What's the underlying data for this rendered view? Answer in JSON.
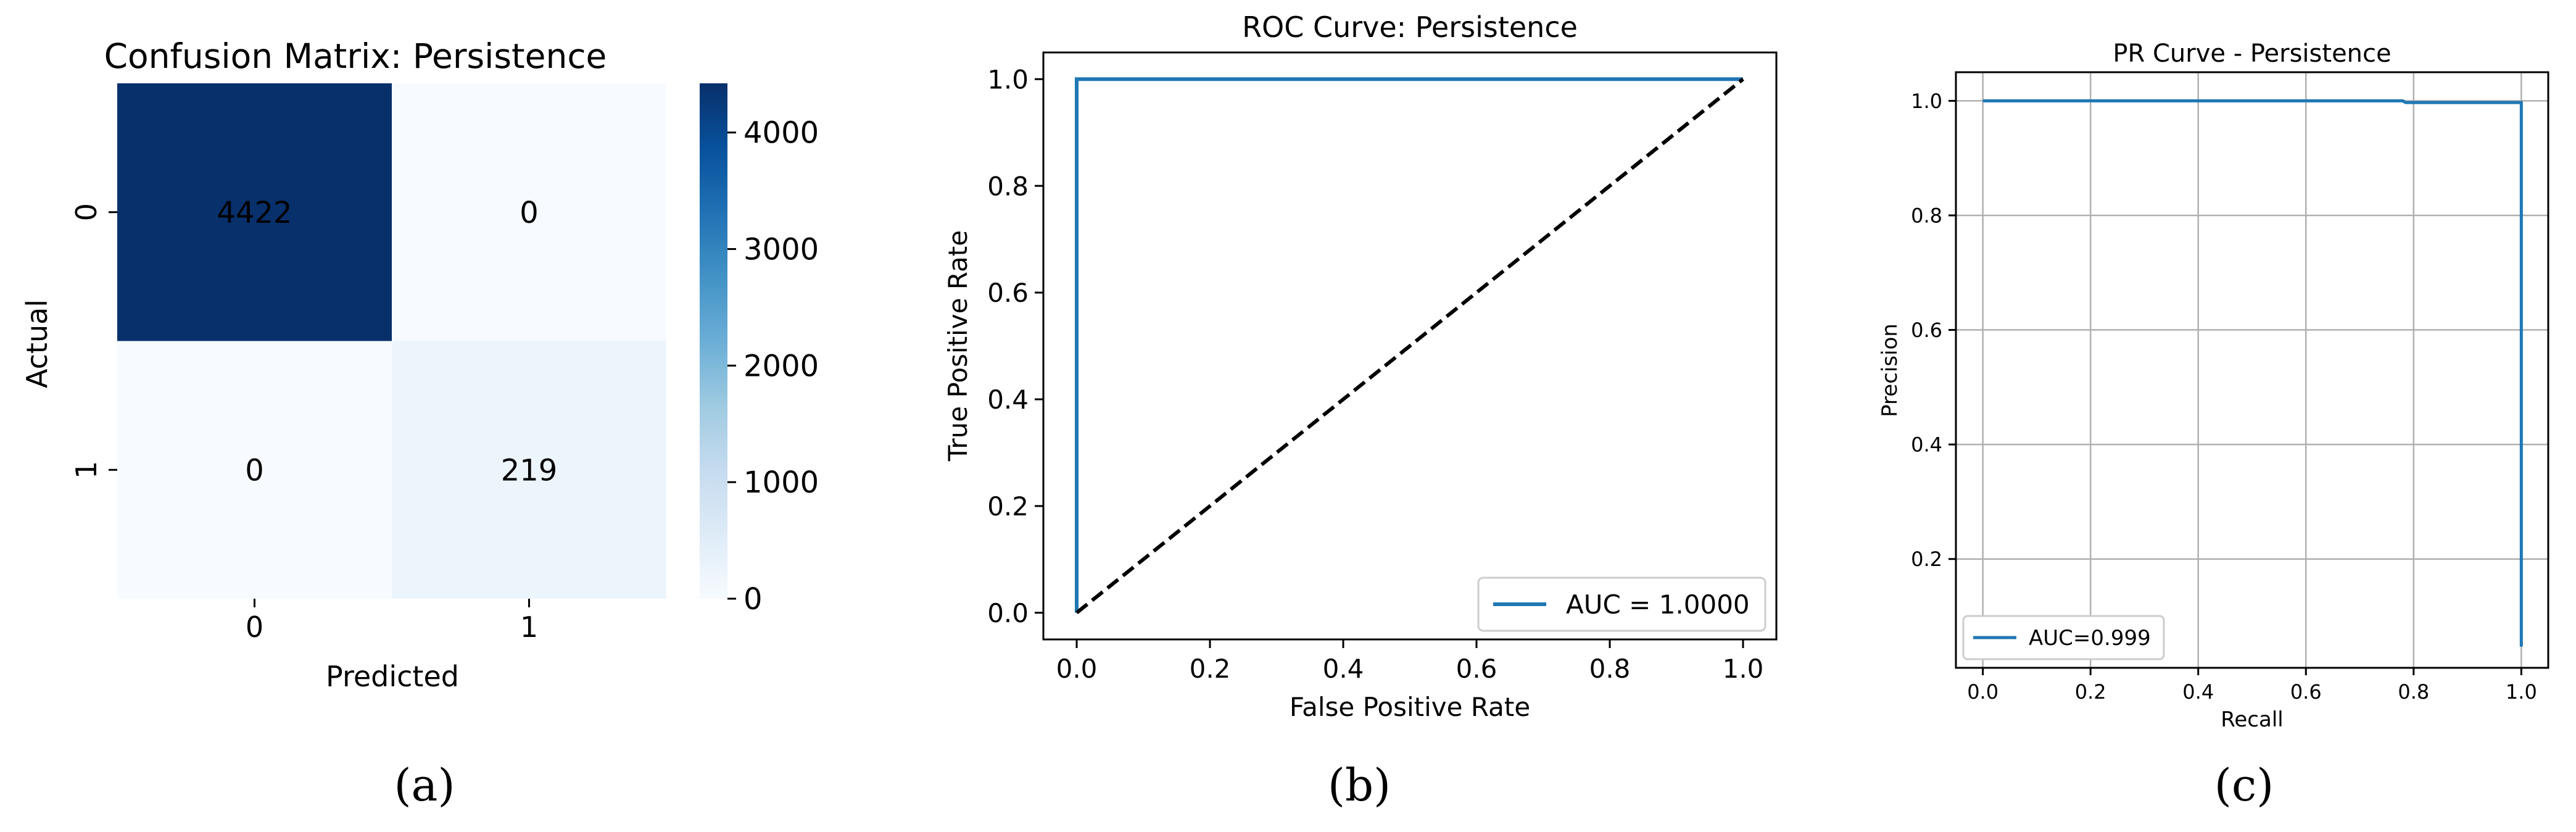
{
  "panels": [
    {
      "letter": "a",
      "label": "(a)"
    },
    {
      "letter": "b",
      "label": "(b)"
    },
    {
      "letter": "c",
      "label": "(c)"
    }
  ],
  "chart_data": [
    {
      "type": "heatmap",
      "title": "Confusion Matrix: Persistence",
      "xlabel": "Predicted",
      "ylabel": "Actual",
      "x_categories": [
        "0",
        "1"
      ],
      "y_categories": [
        "0",
        "1"
      ],
      "values": [
        [
          4422,
          0
        ],
        [
          0,
          219
        ]
      ],
      "cell_labels": [
        [
          "4422",
          "0"
        ],
        [
          "0",
          "219"
        ]
      ],
      "colormap": "Blues",
      "colorbar": {
        "min": 0,
        "max": 4422,
        "ticks": [
          0,
          1000,
          2000,
          3000,
          4000
        ],
        "tick_labels": [
          "0",
          "1000",
          "2000",
          "3000",
          "4000"
        ]
      }
    },
    {
      "type": "line",
      "title": "ROC Curve: Persistence",
      "xlabel": "False Positive Rate",
      "ylabel": "True Positive Rate",
      "xlim": [
        -0.05,
        1.05
      ],
      "ylim": [
        -0.05,
        1.05
      ],
      "x_ticks": [
        "0.0",
        "0.2",
        "0.4",
        "0.6",
        "0.8",
        "1.0"
      ],
      "y_ticks": [
        "0.0",
        "0.2",
        "0.4",
        "0.6",
        "0.8",
        "1.0"
      ],
      "grid": false,
      "legend_position": "lower-right",
      "series": [
        {
          "name": "AUC = 1.0000",
          "color": "#1f77b4",
          "style": "solid",
          "x": [
            0,
            0,
            1
          ],
          "y": [
            0,
            1,
            1
          ]
        },
        {
          "color": "#000000",
          "style": "dashed",
          "x": [
            0,
            1
          ],
          "y": [
            0,
            1
          ]
        }
      ]
    },
    {
      "type": "line",
      "title": "PR Curve - Persistence",
      "xlabel": "Recall",
      "ylabel": "Precision",
      "xlim": [
        -0.05,
        1.05
      ],
      "ylim": [
        0.01,
        1.05
      ],
      "x_ticks": [
        "0.0",
        "0.2",
        "0.4",
        "0.6",
        "0.8",
        "1.0"
      ],
      "y_ticks": [
        "0.2",
        "0.4",
        "0.6",
        "0.8",
        "1.0"
      ],
      "grid": true,
      "legend_position": "lower-left",
      "series": [
        {
          "name": "AUC=0.999",
          "color": "#1f77b4",
          "style": "solid",
          "x": [
            0,
            0.78,
            0.785,
            1,
            1
          ],
          "y": [
            1.0,
            1.0,
            0.997,
            0.997,
            0.047
          ]
        }
      ]
    }
  ]
}
